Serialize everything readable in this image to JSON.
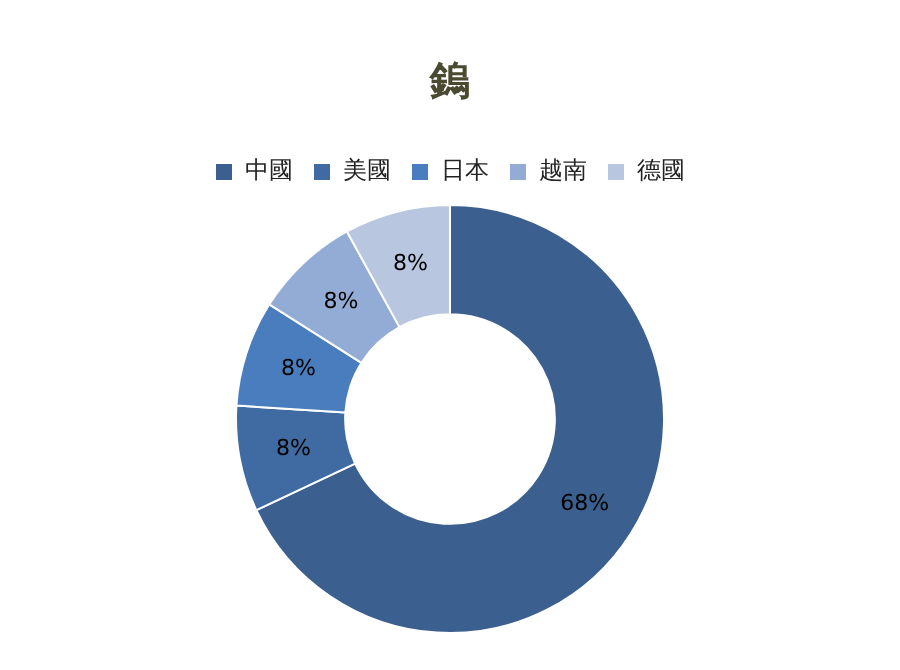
{
  "chart_data": {
    "type": "donut",
    "title": "鎢",
    "categories": [
      "中國",
      "美國",
      "日本",
      "越南",
      "德國"
    ],
    "values": [
      68,
      8,
      8,
      8,
      8
    ],
    "colors": [
      "#3b5f8e",
      "#3f6aa2",
      "#4a7dbd",
      "#93acd5",
      "#b8c6e0"
    ],
    "value_labels": [
      "68%",
      "8%",
      "8%",
      "8%",
      "8%"
    ],
    "legend": "top"
  }
}
